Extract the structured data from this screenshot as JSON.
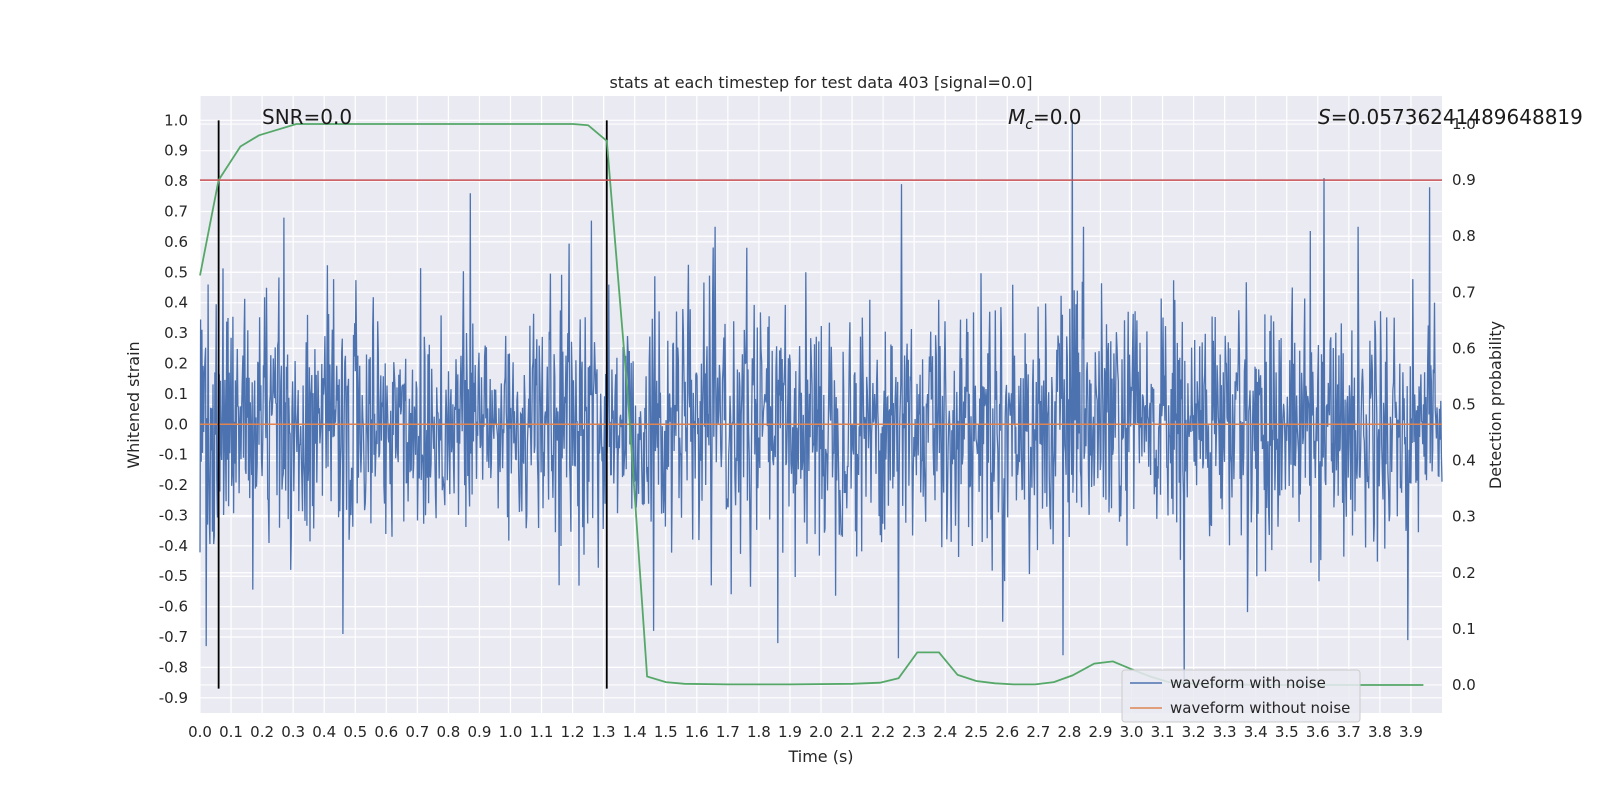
{
  "chart_data": {
    "type": "line",
    "title": "stats at each timestep for test data 403 [signal=0.0]",
    "xlabel": "Time (s)",
    "ylabel_left": "Whitened strain",
    "ylabel_right": "Detection probability",
    "xlim": [
      0.0,
      4.0
    ],
    "ylim_left": [
      -0.95,
      1.08
    ],
    "ylim_right": [
      -0.05,
      1.05
    ],
    "x_ticks": [
      "0.0",
      "0.1",
      "0.2",
      "0.3",
      "0.4",
      "0.5",
      "0.6",
      "0.7",
      "0.8",
      "0.9",
      "1.0",
      "1.1",
      "1.2",
      "1.3",
      "1.4",
      "1.5",
      "1.6",
      "1.7",
      "1.8",
      "1.9",
      "2.0",
      "2.1",
      "2.2",
      "2.3",
      "2.4",
      "2.5",
      "2.6",
      "2.7",
      "2.8",
      "2.9",
      "3.0",
      "3.1",
      "3.2",
      "3.3",
      "3.4",
      "3.5",
      "3.6",
      "3.7",
      "3.8",
      "3.9"
    ],
    "y_ticks_left": [
      "1.0",
      "0.9",
      "0.8",
      "0.7",
      "0.6",
      "0.5",
      "0.4",
      "0.3",
      "0.2",
      "0.1",
      "0.0",
      "-0.1",
      "-0.2",
      "-0.3",
      "-0.4",
      "-0.5",
      "-0.6",
      "-0.7",
      "-0.8",
      "-0.9"
    ],
    "y_ticks_right": [
      "1.0",
      "0.9",
      "0.8",
      "0.7",
      "0.6",
      "0.5",
      "0.4",
      "0.3",
      "0.2",
      "0.1",
      "0.0"
    ],
    "grid": true,
    "legend_position": "bottom-right",
    "series": [
      {
        "name": "waveform with noise",
        "axis": "left",
        "color": "#4c72b0",
        "kind": "noise",
        "typical_range": [
          -0.45,
          0.45
        ],
        "peaks": [
          {
            "x": 0.02,
            "y": -0.73
          },
          {
            "x": 0.27,
            "y": 0.68
          },
          {
            "x": 0.46,
            "y": -0.69
          },
          {
            "x": 0.87,
            "y": 0.76
          },
          {
            "x": 1.26,
            "y": 0.67
          },
          {
            "x": 1.46,
            "y": -0.68
          },
          {
            "x": 1.86,
            "y": -0.72
          },
          {
            "x": 2.26,
            "y": 0.79
          },
          {
            "x": 2.25,
            "y": -0.77
          },
          {
            "x": 2.81,
            "y": 1.0
          },
          {
            "x": 2.78,
            "y": -0.76
          },
          {
            "x": 3.17,
            "y": -0.85
          },
          {
            "x": 3.62,
            "y": 0.81
          },
          {
            "x": 3.96,
            "y": 0.78
          },
          {
            "x": 3.89,
            "y": -0.71
          }
        ]
      },
      {
        "name": "waveform without noise",
        "axis": "left",
        "color": "#dd8452",
        "x": [
          0.0,
          4.0
        ],
        "y": [
          0.0,
          0.0
        ]
      },
      {
        "axis": "right",
        "color": "#55a868",
        "x": [
          0.0,
          0.06,
          0.13,
          0.19,
          0.25,
          0.31,
          0.38,
          0.44,
          0.5,
          0.6,
          0.8,
          1.0,
          1.1,
          1.2,
          1.25,
          1.31,
          1.38,
          1.44,
          1.5,
          1.56,
          1.7,
          1.9,
          2.1,
          2.19,
          2.25,
          2.31,
          2.38,
          2.44,
          2.5,
          2.56,
          2.62,
          2.69,
          2.75,
          2.81,
          2.88,
          2.94,
          3.0,
          3.06,
          3.12,
          3.25,
          3.5,
          3.75,
          3.94
        ],
        "y": [
          0.73,
          0.9,
          0.96,
          0.98,
          0.99,
          1.0,
          1.0,
          1.0,
          1.0,
          1.0,
          1.0,
          1.0,
          1.0,
          1.0,
          0.998,
          0.97,
          0.5,
          0.015,
          0.005,
          0.002,
          0.001,
          0.001,
          0.002,
          0.004,
          0.012,
          0.058,
          0.058,
          0.018,
          0.007,
          0.003,
          0.001,
          0.001,
          0.005,
          0.017,
          0.038,
          0.042,
          0.028,
          0.015,
          0.005,
          0.001,
          0.0,
          0.0,
          0.0
        ]
      },
      {
        "axis": "right",
        "color": "#c44e52",
        "x": [
          0.0,
          4.0
        ],
        "y": [
          0.9,
          0.9
        ]
      }
    ],
    "vlines": [
      {
        "x": 0.06,
        "y_range": [
          -0.87,
          1.0
        ],
        "color": "#000000"
      },
      {
        "x": 1.31,
        "y_range": [
          -0.87,
          1.0
        ],
        "color": "#000000"
      }
    ],
    "annotations": [
      {
        "key": "snr",
        "text": "SNR=0.0",
        "x": 0.2,
        "y": 1.0
      },
      {
        "key": "mc",
        "text_prefix": "M",
        "text_sub": "c",
        "text_suffix": "=0.0",
        "x": 2.6,
        "y": 1.0
      },
      {
        "key": "s",
        "text_prefix": "S",
        "text_suffix": "=0.05736241489648819",
        "x": 3.6,
        "y": 1.0
      }
    ]
  }
}
